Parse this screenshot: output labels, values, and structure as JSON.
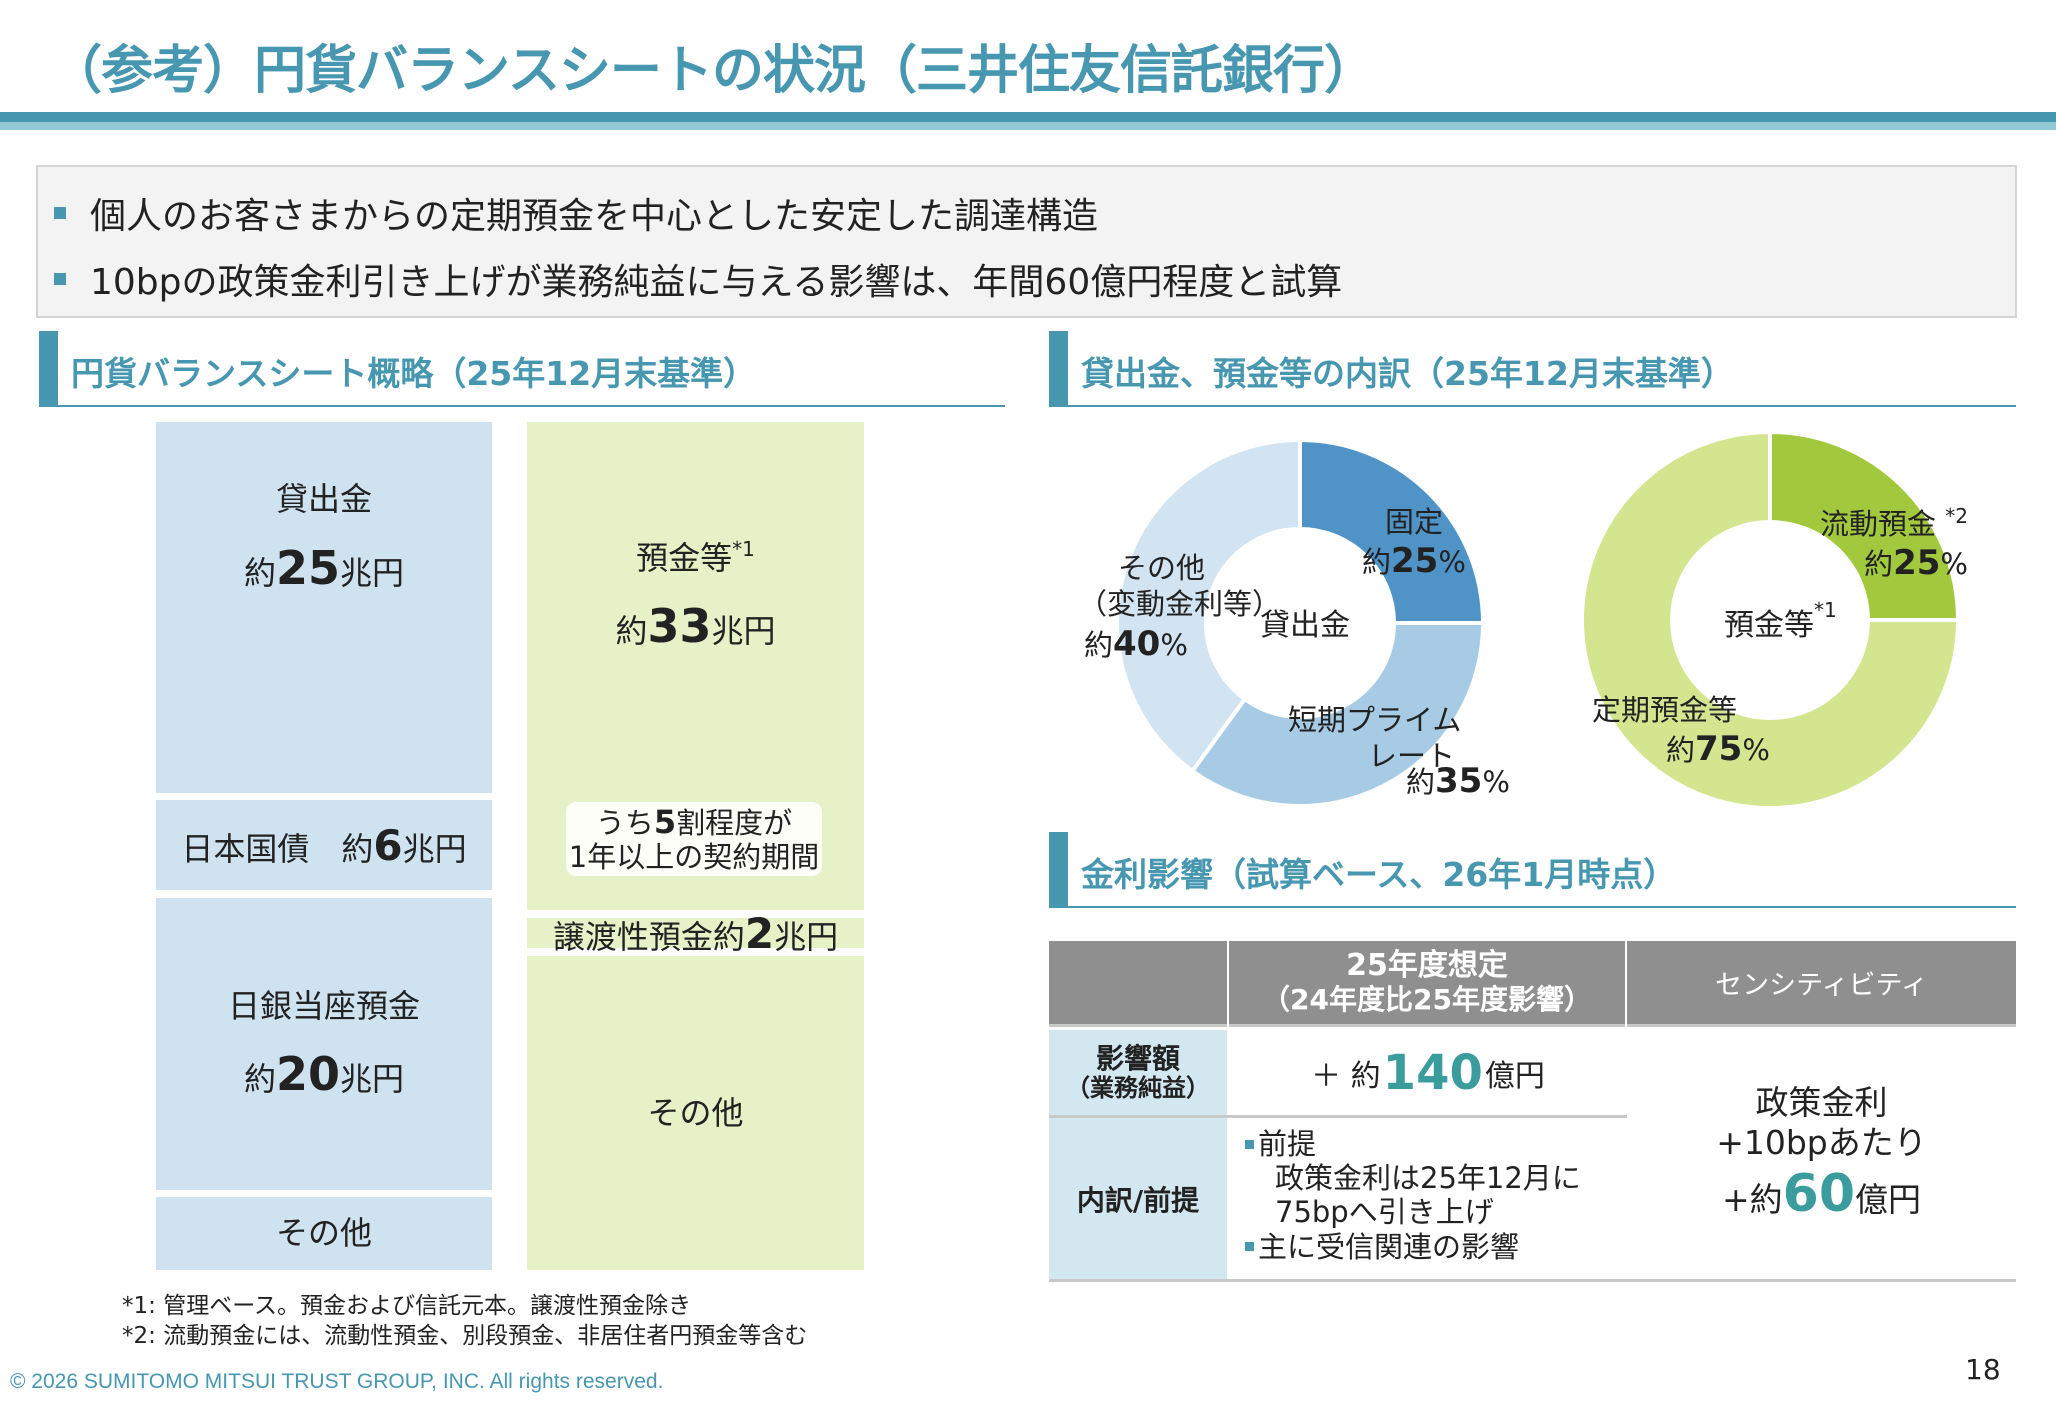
{
  "title": "（参考）円貨バランスシートの状況（三井住友信託銀行）",
  "summary": [
    "個人のお客さまからの定期預金を中心とした安定した調達構造",
    "10bpの政策金利引き上げが業務純益に与える影響は、年間60億円程度と試算"
  ],
  "balance_sheet": {
    "heading": "円貨バランスシート概略（25年12月末基準）",
    "assets": [
      {
        "label": "貸出金",
        "prefix": "約",
        "value": "25",
        "unit": "兆円"
      },
      {
        "label": "日本国債",
        "prefix": "約",
        "value": "6",
        "unit": "兆円"
      },
      {
        "label": "日銀当座預金",
        "prefix": "約",
        "value": "20",
        "unit": "兆円"
      },
      {
        "label": "その他"
      }
    ],
    "liabilities": [
      {
        "label": "預金等",
        "footnote": "*1",
        "prefix": "約",
        "value": "33",
        "unit": "兆円",
        "callout_line1_pre": "うち",
        "callout_line1_num": "5",
        "callout_line1_post": "割程度が",
        "callout_line2": "1年以上の契約期間"
      },
      {
        "label": "譲渡性預金",
        "prefix": "約",
        "value": "2",
        "unit": "兆円"
      },
      {
        "label": "その他"
      }
    ]
  },
  "breakdown": {
    "heading": "貸出金、預金等の内訳（25年12月末基準）",
    "colors": {
      "loan_fixed": "#4f93c7",
      "loan_prime": "#a7cbe4",
      "loan_other": "#d2e4f1",
      "dep_liquid": "#a2c93e",
      "dep_time": "#d3e58f"
    }
  },
  "chart_data": [
    {
      "type": "pie",
      "title": "貸出金",
      "categories": [
        "固定",
        "短期プライムレート",
        "その他（変動金利等）"
      ],
      "values": [
        25,
        35,
        40
      ],
      "labels": [
        {
          "name": "固定",
          "prefix": "約",
          "value": "25",
          "suffix": "%"
        },
        {
          "name_line1": "短期プライム",
          "name_line2": "レート",
          "prefix": "約",
          "value": "35",
          "suffix": "%"
        },
        {
          "name_line1": "その他",
          "name_line2": "（変動金利等）",
          "prefix": "約",
          "value": "40",
          "suffix": "%"
        }
      ]
    },
    {
      "type": "pie",
      "title": "預金等",
      "title_footnote": "*1",
      "categories": [
        "流動預金",
        "定期預金等"
      ],
      "values": [
        25,
        75
      ],
      "labels": [
        {
          "name": "流動預金",
          "footnote": "*2",
          "prefix": "約",
          "value": "25",
          "suffix": "%"
        },
        {
          "name": "定期預金等",
          "prefix": "約",
          "value": "75",
          "suffix": "%"
        }
      ]
    }
  ],
  "rate_impact": {
    "heading": "金利影響（試算ベース、26年1月時点）",
    "col1_header": "25年度想定",
    "col1_sub": "（24年度比25年度影響）",
    "col2_header": "センシティビティ",
    "row1_label": "影響額",
    "row1_sub": "（業務純益）",
    "row1_prefix": "＋ 約",
    "row1_value": "140",
    "row1_unit": "億円",
    "row2_label": "内訳/前提",
    "premise_title": "前提",
    "premise_line1": "政策金利は25年12月に",
    "premise_line2": "75bpへ引き上げ",
    "premise_note": "主に受信関連の影響",
    "sens_line1": "政策金利",
    "sens_line2": "+10bpあたり",
    "sens_prefix": "+約",
    "sens_value": "60",
    "sens_unit": "億円"
  },
  "footnotes": [
    "*1: 管理ベース。預金および信託元本。譲渡性預金除き",
    "*2: 流動預金には、流動性預金、別段預金、非居住者円預金等含む"
  ],
  "copyright": "© 2026 SUMITOMO MITSUI TRUST GROUP, INC. All rights reserved.",
  "page_number": "18"
}
